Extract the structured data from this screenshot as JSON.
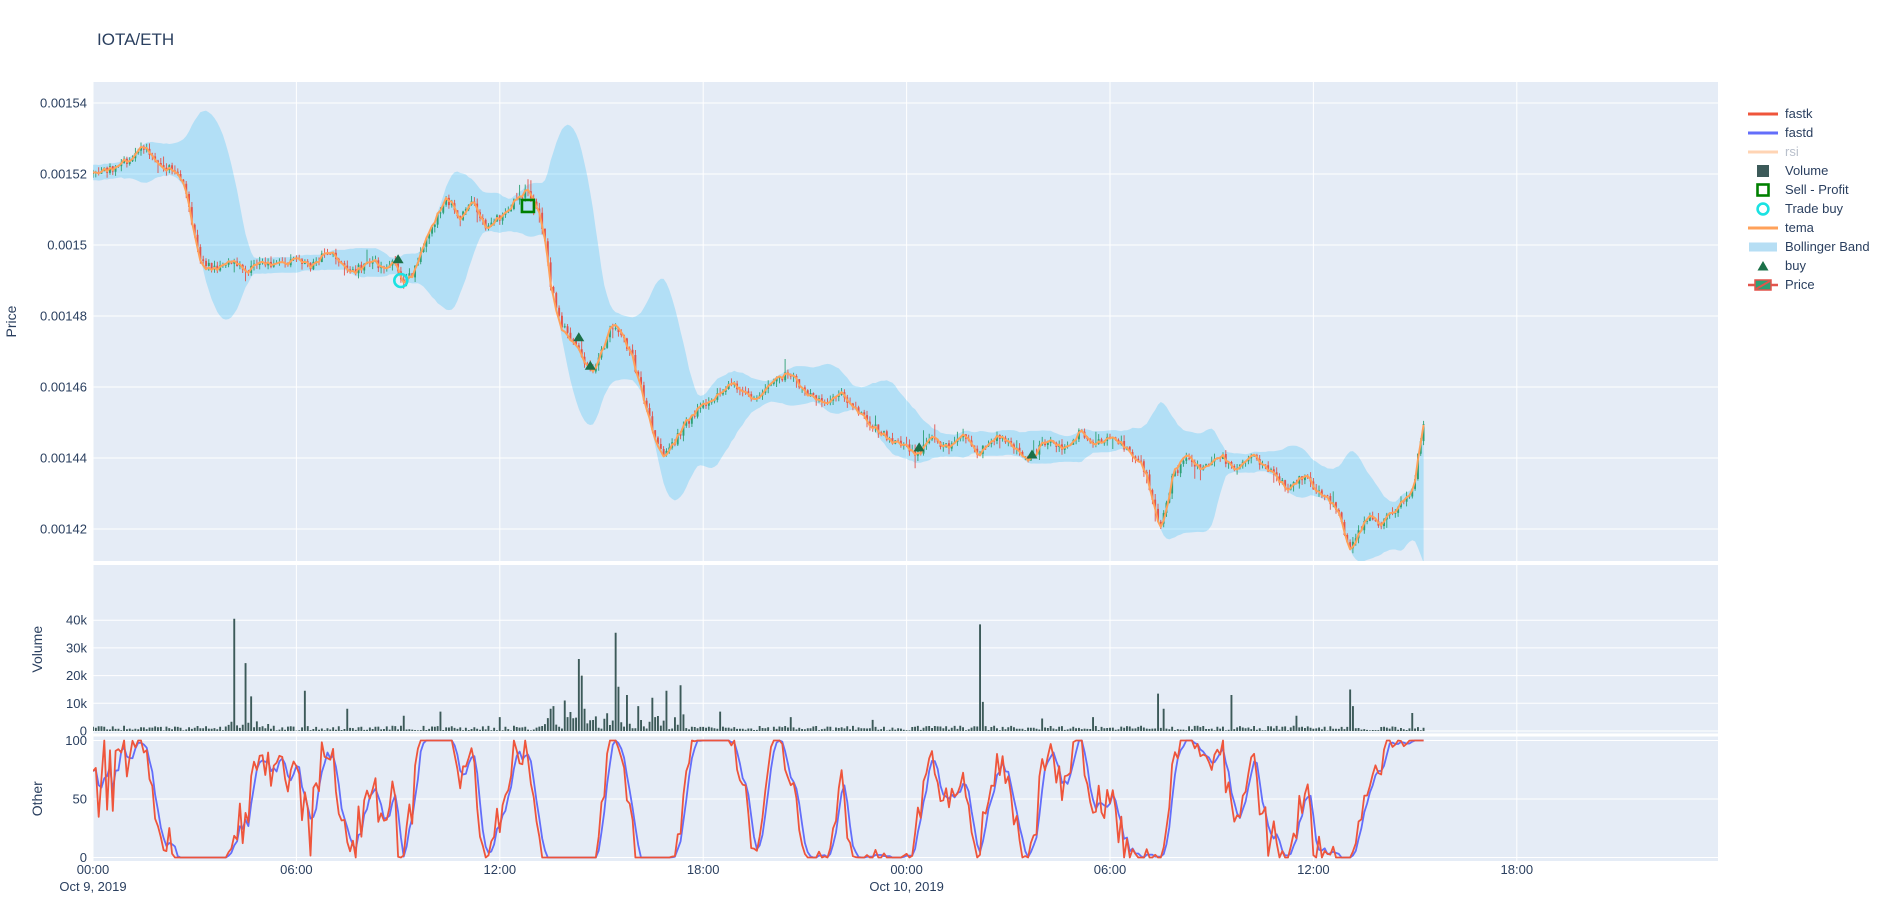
{
  "title": "IOTA/ETH",
  "colors": {
    "plot_bg": "#E5ECF6",
    "grid": "#FFFFFF",
    "text": "#2a3f5f",
    "faded_text": "#b9c0cc",
    "candle_up": "#2EA176",
    "candle_down": "#E3544C",
    "volume_bar": "#3C5A59",
    "tema": "#FFA15A",
    "fastk": "#EF553B",
    "fastd": "#636EFA",
    "rsi": "#FFA15A",
    "bollinger_fill": "rgba(0,176,246,0.22)",
    "bollinger_legend": "#B6DEF4",
    "buy_marker": "#1B7048",
    "sell_profit_marker": "#008000",
    "trade_buy_marker": "#1BE2E2"
  },
  "legend": {
    "items": [
      {
        "label": "fastk",
        "symbol": "line",
        "color": "#EF553B",
        "faded": false
      },
      {
        "label": "fastd",
        "symbol": "line",
        "color": "#636EFA",
        "faded": false
      },
      {
        "label": "rsi",
        "symbol": "line",
        "color": "#FFA15A",
        "faded": true
      },
      {
        "label": "Volume",
        "symbol": "square",
        "color": "#3C5A59",
        "faded": false
      },
      {
        "label": "Sell - Profit",
        "symbol": "square-open",
        "color": "#008000",
        "faded": false
      },
      {
        "label": "Trade buy",
        "symbol": "circle-open",
        "color": "#1BE2E2",
        "faded": false
      },
      {
        "label": "tema",
        "symbol": "line",
        "color": "#FFA15A",
        "faded": false
      },
      {
        "label": "Bollinger Band",
        "symbol": "thickline",
        "color": "#B6DEF4",
        "faded": false
      },
      {
        "label": "buy",
        "symbol": "triangle",
        "color": "#1B7048",
        "faded": false
      },
      {
        "label": "Price",
        "symbol": "candle",
        "color": "#2EA176",
        "faded": false
      }
    ]
  },
  "axes": {
    "x": {
      "start_label": "Oct 9, 2019",
      "ticks": [
        {
          "t": 0,
          "label": "00:00",
          "sub": "Oct 9, 2019"
        },
        {
          "t": 6,
          "label": "06:00",
          "sub": ""
        },
        {
          "t": 12,
          "label": "12:00",
          "sub": ""
        },
        {
          "t": 18,
          "label": "18:00",
          "sub": ""
        },
        {
          "t": 24,
          "label": "00:00",
          "sub": "Oct 10, 2019"
        },
        {
          "t": 30,
          "label": "06:00",
          "sub": ""
        },
        {
          "t": 36,
          "label": "12:00",
          "sub": ""
        },
        {
          "t": 42,
          "label": "18:00",
          "sub": ""
        }
      ],
      "range_hours": [
        0,
        47.9
      ]
    },
    "price": {
      "title": "Price",
      "ticks": [
        {
          "v": 0.00154,
          "label": "0.00154"
        },
        {
          "v": 0.00152,
          "label": "0.00152"
        },
        {
          "v": 0.0015,
          "label": "0.0015"
        },
        {
          "v": 0.00148,
          "label": "0.00148"
        },
        {
          "v": 0.00146,
          "label": "0.00146"
        },
        {
          "v": 0.00144,
          "label": "0.00144"
        },
        {
          "v": 0.00142,
          "label": "0.00142"
        }
      ],
      "range": [
        0.001411,
        0.001546
      ]
    },
    "volume": {
      "title": "Volume",
      "ticks": [
        {
          "v": 40000,
          "label": "40k"
        },
        {
          "v": 30000,
          "label": "30k"
        },
        {
          "v": 20000,
          "label": "20k"
        },
        {
          "v": 10000,
          "label": "10k"
        },
        {
          "v": 0,
          "label": "0"
        }
      ],
      "range": [
        0,
        60000
      ]
    },
    "other": {
      "title": "Other",
      "ticks": [
        {
          "v": 100,
          "label": "100"
        },
        {
          "v": 50,
          "label": "50"
        },
        {
          "v": 0,
          "label": "0"
        }
      ],
      "range": [
        0,
        100
      ]
    }
  },
  "chart_data": [
    {
      "type": "candlestick",
      "name": "Price",
      "interval_minutes": 5,
      "x_start": "2019-10-09 00:00",
      "x_end_hours": 39.33,
      "ylim": [
        0.001411,
        0.001546
      ],
      "anchors": {
        "t": [
          0,
          0.4,
          0.8,
          1.1,
          1.5,
          1.8,
          2.1,
          2.5,
          2.8,
          3.0,
          3.3,
          3.7,
          4.2,
          4.6,
          5.0,
          5.5,
          6.0,
          6.5,
          7.0,
          7.4,
          7.8,
          8.3,
          8.7,
          9.0,
          9.2,
          9.5,
          9.8,
          10.2,
          10.5,
          10.9,
          11.3,
          11.7,
          12.1,
          12.5,
          12.85,
          13.1,
          13.35,
          13.6,
          13.9,
          14.2,
          14.5,
          14.8,
          15.1,
          15.4,
          15.7,
          16.0,
          16.3,
          16.6,
          16.9,
          17.2,
          17.6,
          18.0,
          18.5,
          19.0,
          19.5,
          20.0,
          20.6,
          21.1,
          21.6,
          22.1,
          22.6,
          23.1,
          23.6,
          24.0,
          24.4,
          24.8,
          25.3,
          25.8,
          26.2,
          26.6,
          27.1,
          27.7,
          28.2,
          28.7,
          29.2,
          29.7,
          30.2,
          30.7,
          31.1,
          31.45,
          31.6,
          31.9,
          32.3,
          32.8,
          33.3,
          33.8,
          34.3,
          34.8,
          35.3,
          35.8,
          36.3,
          36.8,
          37.0,
          37.15,
          37.4,
          37.7,
          38.0,
          38.3,
          38.7,
          39.0,
          39.1,
          39.2,
          39.33
        ],
        "close": [
          0.00152,
          0.001521,
          0.001522,
          0.001524,
          0.001527,
          0.001526,
          0.001522,
          0.001521,
          0.001517,
          0.001505,
          0.001495,
          0.001493,
          0.001496,
          0.001492,
          0.001495,
          0.001494,
          0.001496,
          0.001494,
          0.001498,
          0.001495,
          0.001493,
          0.001495,
          0.001494,
          0.001495,
          0.001489,
          0.001492,
          0.001499,
          0.001507,
          0.001513,
          0.001508,
          0.001512,
          0.001505,
          0.001508,
          0.001512,
          0.001515,
          0.001513,
          0.001505,
          0.001488,
          0.001478,
          0.001473,
          0.001469,
          0.001464,
          0.00147,
          0.001477,
          0.001474,
          0.001468,
          0.001458,
          0.001448,
          0.00144,
          0.001444,
          0.00145,
          0.001454,
          0.001458,
          0.001461,
          0.001457,
          0.00146,
          0.001464,
          0.001459,
          0.001455,
          0.001459,
          0.001453,
          0.001449,
          0.001445,
          0.001444,
          0.001441,
          0.001445,
          0.001443,
          0.001446,
          0.001441,
          0.001446,
          0.001444,
          0.001439,
          0.001445,
          0.001443,
          0.001447,
          0.001444,
          0.001446,
          0.001441,
          0.001437,
          0.001424,
          0.001421,
          0.001434,
          0.00144,
          0.001437,
          0.001441,
          0.001437,
          0.00144,
          0.001436,
          0.001432,
          0.001435,
          0.00143,
          0.001426,
          0.001419,
          0.001415,
          0.001419,
          0.001423,
          0.001421,
          0.001424,
          0.001427,
          0.001431,
          0.001436,
          0.001443,
          0.00145
        ]
      },
      "overlays": [
        "tema",
        "Bollinger Band"
      ],
      "markers": {
        "buy": {
          "t": [
            9.0,
            14.33,
            14.67,
            24.37,
            27.7
          ],
          "price": [
            0.001496,
            0.001474,
            0.001466,
            0.001443,
            0.001441
          ]
        },
        "trade_buy": {
          "t": [
            9.08
          ],
          "price": [
            0.00149
          ]
        },
        "sell_profit": {
          "t": [
            12.83
          ],
          "price": [
            0.001511
          ]
        }
      },
      "generation": {
        "seed": 42,
        "close_noise": 2.2e-06,
        "wick_noise": 1.6e-06,
        "big_wick_chance": 0.06,
        "big_wick_extra": 3e-06,
        "bollinger_window": 20,
        "bollinger_mult": 2.3,
        "tema_period": 5
      }
    },
    {
      "type": "bar",
      "name": "Volume",
      "ylim": [
        0,
        60000
      ],
      "baseline_range": [
        150,
        1900
      ],
      "busy_interval_hours": [
        13.3,
        17.5
      ],
      "busy_extra_max": 9000,
      "spikes": [
        [
          4.17,
          40500
        ],
        [
          4.5,
          24500
        ],
        [
          4.67,
          12500
        ],
        [
          6.25,
          14500
        ],
        [
          7.5,
          8000
        ],
        [
          9.17,
          5500
        ],
        [
          10.25,
          7000
        ],
        [
          12.0,
          5000
        ],
        [
          13.58,
          9000
        ],
        [
          13.92,
          11000
        ],
        [
          14.33,
          26000
        ],
        [
          14.42,
          20000
        ],
        [
          15.42,
          35500
        ],
        [
          15.5,
          16000
        ],
        [
          15.75,
          13000
        ],
        [
          16.08,
          9000
        ],
        [
          16.5,
          12000
        ],
        [
          16.92,
          14500
        ],
        [
          17.33,
          16500
        ],
        [
          18.5,
          7000
        ],
        [
          20.58,
          5000
        ],
        [
          23.0,
          4000
        ],
        [
          26.17,
          38500
        ],
        [
          26.25,
          10500
        ],
        [
          28.0,
          4500
        ],
        [
          29.5,
          5000
        ],
        [
          31.42,
          13500
        ],
        [
          31.58,
          8000
        ],
        [
          33.58,
          13000
        ],
        [
          35.5,
          5500
        ],
        [
          37.08,
          15000
        ],
        [
          37.17,
          9000
        ],
        [
          38.92,
          6500
        ]
      ]
    },
    {
      "type": "line",
      "name": "Other",
      "ylim": [
        0,
        100
      ],
      "series": [
        {
          "name": "fastk",
          "color": "#EF553B",
          "visible": true,
          "pattern": "stochastic %K(14) of closes, clipped at 0 and 100"
        },
        {
          "name": "fastd",
          "color": "#636EFA",
          "visible": true,
          "pattern": "SMA(3) of fastk, clipped at 0 and 100"
        },
        {
          "name": "rsi",
          "color": "#FFA15A",
          "visible": false,
          "pattern": "hidden via legend toggle"
        }
      ],
      "generation": {
        "k_window": 14,
        "d_window": 3,
        "amplify": 1.35
      }
    }
  ]
}
